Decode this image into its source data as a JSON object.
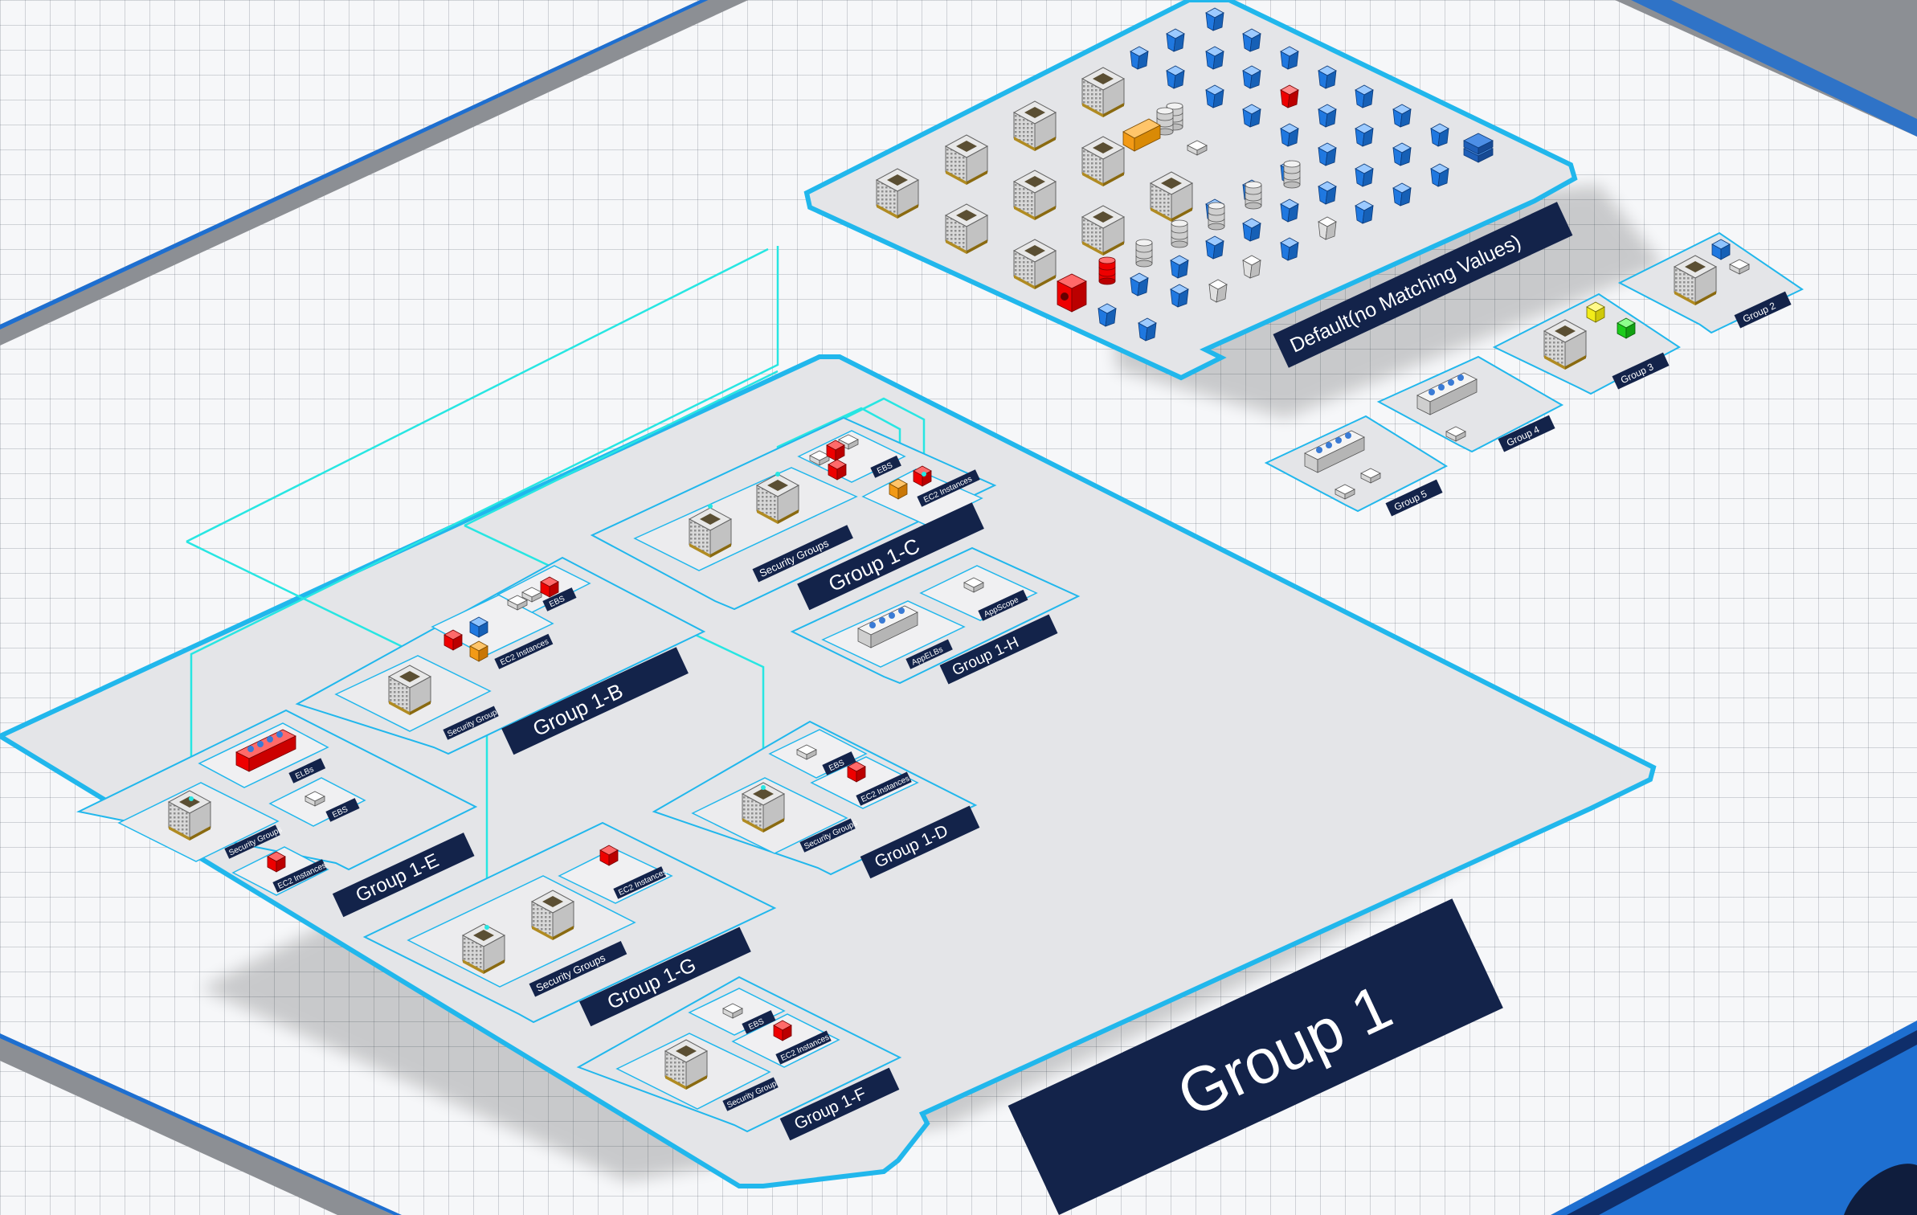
{
  "colors": {
    "plate_fill": "#e4e5e8",
    "plate_border": "#21b7ec",
    "label_bg": "#13234a",
    "connection": "#27e6e2",
    "alert": "#ff0000",
    "warning": "#f29a16",
    "info": "#1f78e0",
    "ok": "#1ccc1c",
    "notice": "#f2ec1a"
  },
  "groups": {
    "main": "Group 1",
    "default": "Default(no Matching Values)",
    "g2": "Group 2",
    "g3": "Group 3",
    "g4": "Group 4",
    "g5": "Group 5"
  },
  "subgroups": {
    "b": "Group 1-B",
    "c": "Group 1-C",
    "d": "Group 1-D",
    "e": "Group 1-E",
    "f": "Group 1-F",
    "g": "Group 1-G",
    "h": "Group 1-H"
  },
  "tags": {
    "security_groups": "Security Groups",
    "security_group": "Security Group",
    "ec2_instances": "EC2 Instances",
    "ec2_instance": "EC2 Instance",
    "ebs": "EBS",
    "elbs": "ELBs",
    "app_elbs": "AppELBs",
    "app_scope": "AppScope"
  },
  "icons": {
    "security_group": "security-group-cube-icon",
    "instance": "ec2-instance-cube-icon",
    "volume": "ebs-volume-icon",
    "load_balancer": "load-balancer-icon",
    "bucket": "bucket-icon",
    "database": "database-cylinder-icon"
  }
}
